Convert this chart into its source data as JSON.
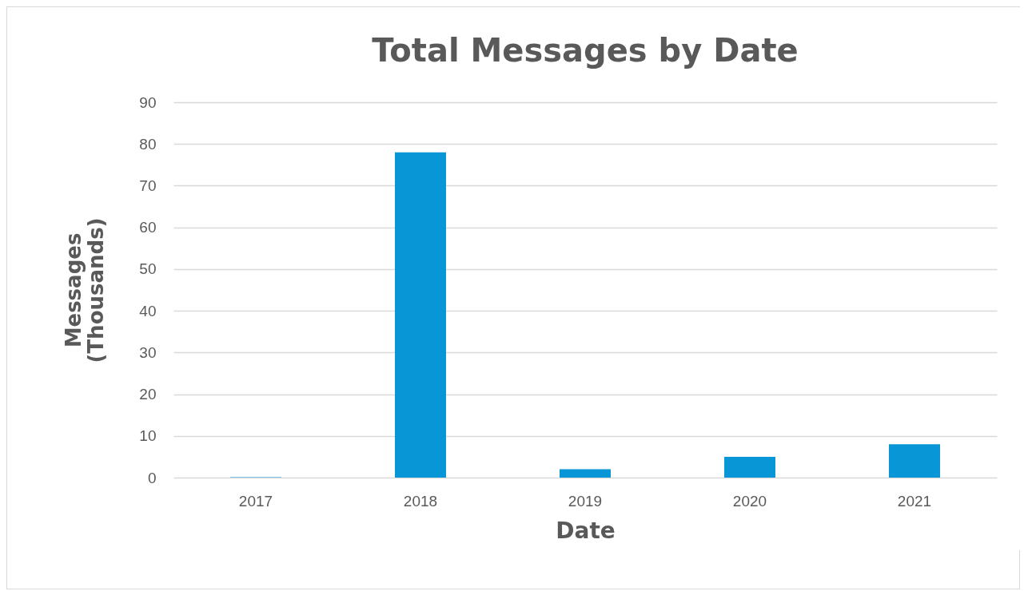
{
  "chart_data": {
    "type": "bar",
    "title": "Total Messages by Date",
    "xlabel": "Date",
    "ylabel": "Messages (Thousands)",
    "categories": [
      "2017",
      "2018",
      "2019",
      "2020",
      "2021"
    ],
    "values": [
      0.1,
      78,
      2,
      5,
      8
    ],
    "color": "#0896d6",
    "ylim": [
      0,
      90
    ],
    "yticks": [
      0,
      10,
      20,
      30,
      40,
      50,
      60,
      70,
      80,
      90
    ],
    "grid": "y"
  }
}
